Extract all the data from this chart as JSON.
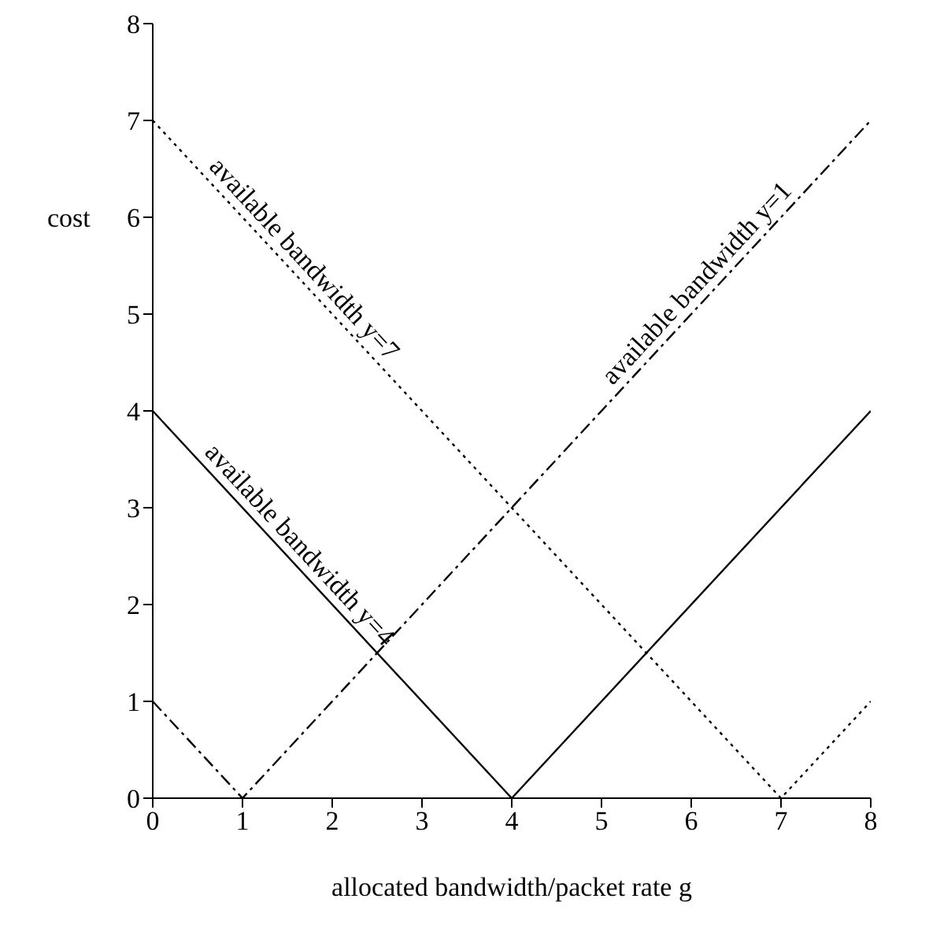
{
  "chart_data": {
    "type": "line",
    "xlabel": "allocated bandwidth/packet rate  g",
    "ylabel": "cost",
    "xlim": [
      0,
      8
    ],
    "ylim": [
      0,
      8
    ],
    "xticks": [
      0,
      1,
      2,
      3,
      4,
      5,
      6,
      7,
      8
    ],
    "yticks": [
      0,
      1,
      2,
      3,
      4,
      5,
      6,
      7,
      8
    ],
    "marker": "none",
    "series": [
      {
        "name": "available bandwidth y=7",
        "color": "#000000",
        "line_style": "dotted",
        "x": [
          0,
          7,
          8
        ],
        "values": [
          7,
          0,
          1
        ]
      },
      {
        "name": "available bandwidth y=4",
        "color": "#000000",
        "line_style": "solid",
        "x": [
          0,
          4,
          8
        ],
        "values": [
          4,
          0,
          4
        ]
      },
      {
        "name": "available bandwidth y=1",
        "color": "#000000",
        "line_style": "dashed",
        "x": [
          0,
          1,
          8
        ],
        "values": [
          1,
          0,
          7
        ]
      }
    ]
  }
}
